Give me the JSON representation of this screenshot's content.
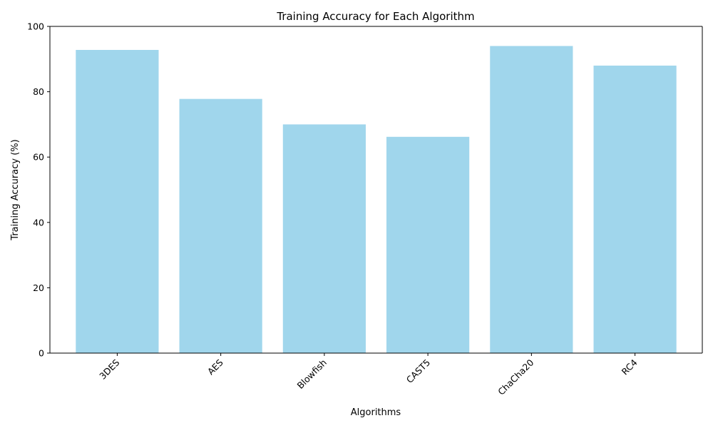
{
  "chart_data": {
    "type": "bar",
    "title": "Training Accuracy for Each Algorithm",
    "xlabel": "Algorithms",
    "ylabel": "Training Accuracy (%)",
    "categories": [
      "3DES",
      "AES",
      "Blowfish",
      "CAST5",
      "ChaCha20",
      "RC4"
    ],
    "values": [
      92.8,
      77.8,
      70.0,
      66.2,
      94.0,
      88.0
    ],
    "ylim": [
      0,
      100
    ],
    "yticks": [
      0,
      20,
      40,
      60,
      80,
      100
    ],
    "grid": false,
    "legend": "none",
    "bar_color": "#a0d6ec",
    "xtick_rotation_deg": -45
  }
}
